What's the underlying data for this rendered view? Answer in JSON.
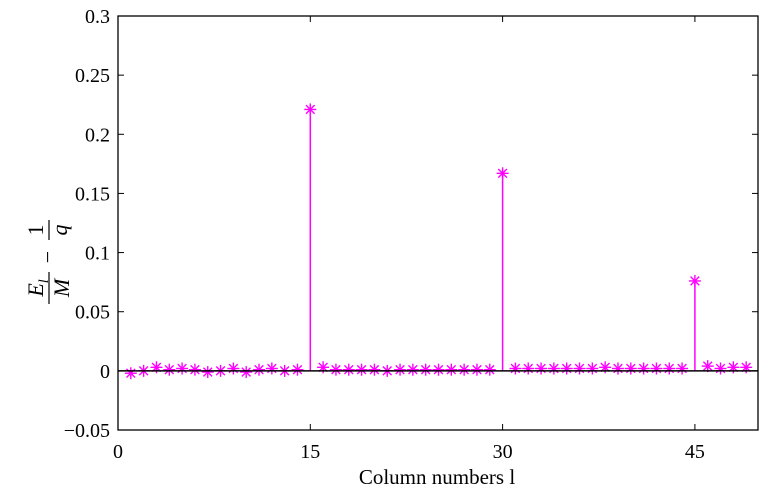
{
  "chart_data": {
    "type": "stem",
    "title": "",
    "xlabel": "Column numbers l",
    "ylabel": {
      "numerator_symbol": "E",
      "numerator_subscript": "l",
      "denominator_symbol": "M",
      "minus": "−",
      "numerator_one": "1",
      "denominator_q": "q"
    },
    "xlim": [
      0,
      50
    ],
    "ylim": [
      -0.05,
      0.3
    ],
    "xticks": [
      0,
      15,
      30,
      45
    ],
    "xtick_labels": [
      "0",
      "15",
      "30",
      "45"
    ],
    "yticks": [
      -0.05,
      0,
      0.05,
      0.1,
      0.15,
      0.2,
      0.25,
      0.3
    ],
    "ytick_labels": [
      "−0.05",
      "0",
      "0.05",
      "0.1",
      "0.15",
      "0.2",
      "0.25",
      "0.3"
    ],
    "grid": false,
    "baseline": 0,
    "marker": "asterisk",
    "color": "#ff00ff",
    "x": [
      1,
      2,
      3,
      4,
      5,
      6,
      7,
      8,
      9,
      10,
      11,
      12,
      13,
      14,
      15,
      16,
      17,
      18,
      19,
      20,
      21,
      22,
      23,
      24,
      25,
      26,
      27,
      28,
      29,
      30,
      31,
      32,
      33,
      34,
      35,
      36,
      37,
      38,
      39,
      40,
      41,
      42,
      43,
      44,
      45,
      46,
      47,
      48,
      49
    ],
    "values": [
      -0.002,
      0.0,
      0.003,
      0.001,
      0.002,
      0.001,
      -0.001,
      0.0,
      0.002,
      -0.001,
      0.001,
      0.002,
      0.0,
      0.001,
      0.221,
      0.003,
      0.001,
      0.001,
      0.001,
      0.001,
      0.0,
      0.001,
      0.001,
      0.001,
      0.001,
      0.001,
      0.001,
      0.001,
      0.001,
      0.167,
      0.002,
      0.002,
      0.002,
      0.002,
      0.002,
      0.002,
      0.002,
      0.003,
      0.002,
      0.002,
      0.002,
      0.002,
      0.002,
      0.002,
      0.076,
      0.004,
      0.002,
      0.003,
      0.003
    ]
  }
}
